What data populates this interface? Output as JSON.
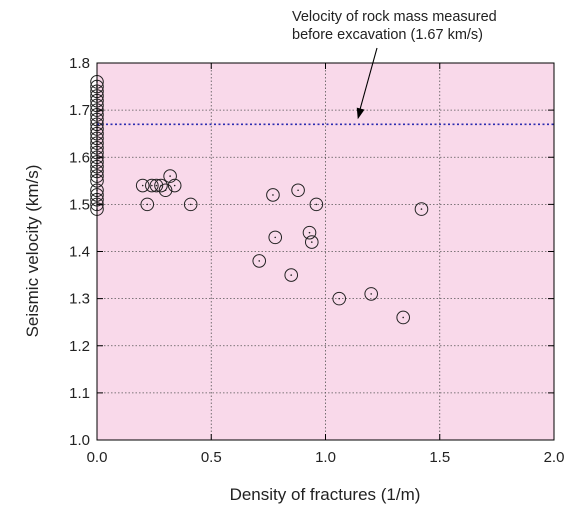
{
  "chart_data": {
    "type": "scatter",
    "xlabel": "Density of fractures (1/m)",
    "ylabel": "Seismic velocity (km/s)",
    "xlim": [
      0.0,
      2.0
    ],
    "ylim": [
      1.0,
      1.8
    ],
    "x_ticks": [
      "0.0",
      "0.5",
      "1.0",
      "1.5",
      "2.0"
    ],
    "y_ticks": [
      "1.0",
      "1.1",
      "1.2",
      "1.3",
      "1.4",
      "1.5",
      "1.6",
      "1.7",
      "1.8"
    ],
    "grid": true,
    "background_color": "#f9d9ea",
    "reference_line": {
      "y": 1.67,
      "color": "#2b2bb0",
      "style": "dotted"
    },
    "annotation": {
      "lines": [
        "Velocity of rock mass measured",
        "before excavation (1.67 km/s)"
      ],
      "points_to": {
        "x": 1.15,
        "y": 1.67
      }
    },
    "series": [
      {
        "marker": "open-circle-with-center-dot",
        "points": [
          [
            0.0,
            1.49
          ],
          [
            0.0,
            1.5
          ],
          [
            0.0,
            1.51
          ],
          [
            0.0,
            1.52
          ],
          [
            0.0,
            1.53
          ],
          [
            0.0,
            1.55
          ],
          [
            0.0,
            1.56
          ],
          [
            0.0,
            1.57
          ],
          [
            0.0,
            1.58
          ],
          [
            0.0,
            1.59
          ],
          [
            0.0,
            1.6
          ],
          [
            0.0,
            1.61
          ],
          [
            0.0,
            1.62
          ],
          [
            0.0,
            1.63
          ],
          [
            0.0,
            1.64
          ],
          [
            0.0,
            1.65
          ],
          [
            0.0,
            1.66
          ],
          [
            0.0,
            1.67
          ],
          [
            0.0,
            1.68
          ],
          [
            0.0,
            1.69
          ],
          [
            0.0,
            1.7
          ],
          [
            0.0,
            1.71
          ],
          [
            0.0,
            1.72
          ],
          [
            0.0,
            1.73
          ],
          [
            0.0,
            1.74
          ],
          [
            0.0,
            1.75
          ],
          [
            0.0,
            1.76
          ],
          [
            0.2,
            1.54
          ],
          [
            0.22,
            1.5
          ],
          [
            0.24,
            1.54
          ],
          [
            0.26,
            1.54
          ],
          [
            0.28,
            1.54
          ],
          [
            0.3,
            1.53
          ],
          [
            0.32,
            1.56
          ],
          [
            0.34,
            1.54
          ],
          [
            0.41,
            1.5
          ],
          [
            0.71,
            1.38
          ],
          [
            0.77,
            1.52
          ],
          [
            0.78,
            1.43
          ],
          [
            0.85,
            1.35
          ],
          [
            0.88,
            1.53
          ],
          [
            0.93,
            1.44
          ],
          [
            0.94,
            1.42
          ],
          [
            0.96,
            1.5
          ],
          [
            1.06,
            1.3
          ],
          [
            1.2,
            1.31
          ],
          [
            1.34,
            1.26
          ],
          [
            1.42,
            1.49
          ]
        ]
      }
    ]
  }
}
